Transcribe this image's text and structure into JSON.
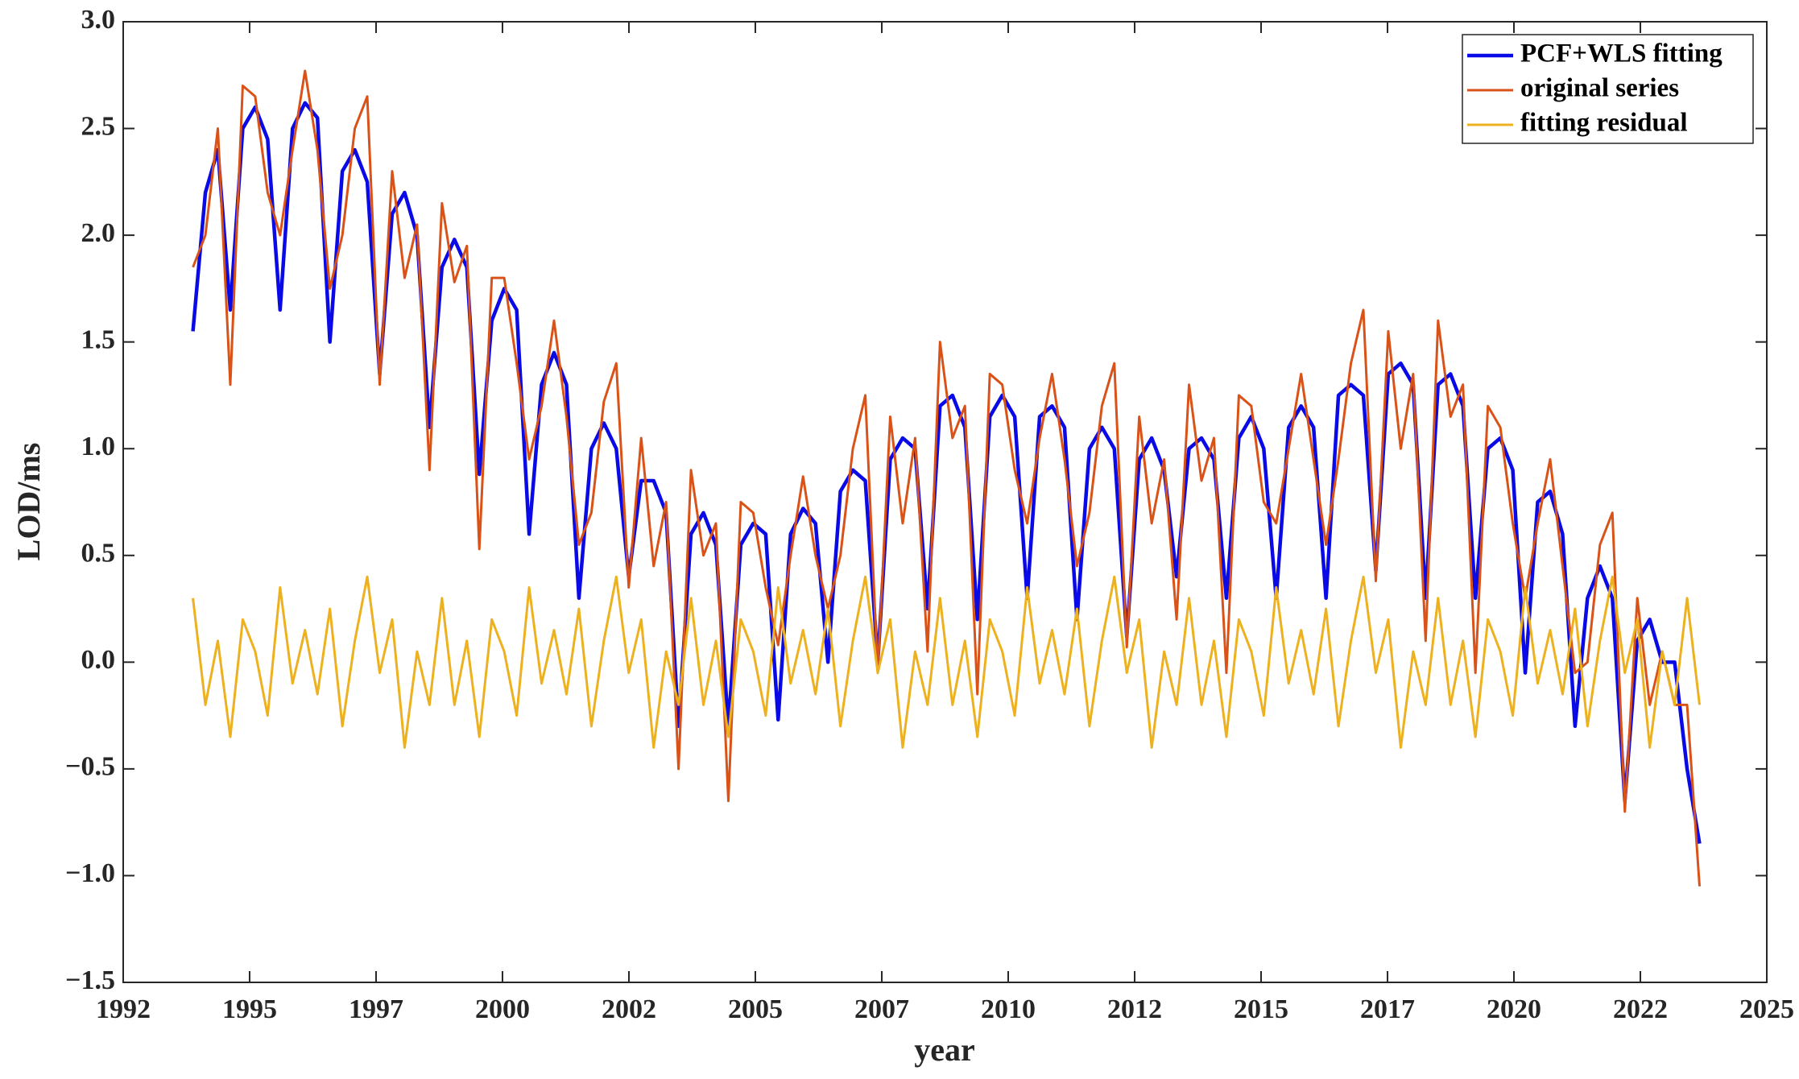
{
  "chart_data": {
    "type": "line",
    "xlabel": "year",
    "ylabel": "LOD/ms",
    "x": [
      1993.4,
      1993.65,
      1993.9,
      1994.15,
      1994.4,
      1994.65,
      1994.9,
      1995.15,
      1995.4,
      1995.65,
      1995.9,
      1996.15,
      1996.4,
      1996.65,
      1996.9,
      1997.15,
      1997.4,
      1997.65,
      1997.9,
      1998.15,
      1998.4,
      1998.65,
      1998.9,
      1999.15,
      1999.4,
      1999.65,
      1999.9,
      2000.15,
      2000.4,
      2000.65,
      2000.9,
      2001.15,
      2001.4,
      2001.65,
      2001.9,
      2002.15,
      2002.4,
      2002.65,
      2002.9,
      2003.15,
      2003.4,
      2003.65,
      2003.9,
      2004.15,
      2004.4,
      2004.65,
      2004.9,
      2005.15,
      2005.4,
      2005.65,
      2005.9,
      2006.15,
      2006.4,
      2006.65,
      2006.9,
      2007.15,
      2007.4,
      2007.65,
      2007.9,
      2008.15,
      2008.4,
      2008.65,
      2008.9,
      2009.15,
      2009.4,
      2009.65,
      2009.9,
      2010.15,
      2010.4,
      2010.65,
      2010.9,
      2011.15,
      2011.4,
      2011.65,
      2011.9,
      2012.15,
      2012.4,
      2012.65,
      2012.9,
      2013.15,
      2013.4,
      2013.65,
      2013.9,
      2014.15,
      2014.4,
      2014.65,
      2014.9,
      2015.15,
      2015.4,
      2015.65,
      2015.9,
      2016.15,
      2016.4,
      2016.65,
      2016.9,
      2017.15,
      2017.4,
      2017.65,
      2017.9,
      2018.15,
      2018.4,
      2018.65,
      2018.9,
      2019.15,
      2019.4,
      2019.65,
      2019.9,
      2020.15,
      2020.4,
      2020.65,
      2020.9,
      2021.15,
      2021.4,
      2021.65,
      2021.9,
      2022.15,
      2022.4,
      2022.65,
      2022.9,
      2023.15,
      2023.4,
      2023.65
    ],
    "series": [
      {
        "name": "PCF+WLS fitting",
        "color": "#0a0ae6",
        "values": [
          1.55,
          2.2,
          2.4,
          1.65,
          2.5,
          2.6,
          2.45,
          1.65,
          2.5,
          2.62,
          2.55,
          1.5,
          2.3,
          2.4,
          2.25,
          1.35,
          2.1,
          2.2,
          2.0,
          1.1,
          1.85,
          1.98,
          1.85,
          0.88,
          1.6,
          1.75,
          1.65,
          0.6,
          1.3,
          1.45,
          1.3,
          0.3,
          1.0,
          1.12,
          1.0,
          0.4,
          0.85,
          0.85,
          0.7,
          -0.3,
          0.6,
          0.7,
          0.55,
          -0.3,
          0.55,
          0.65,
          0.6,
          -0.27,
          0.6,
          0.72,
          0.65,
          0.0,
          0.8,
          0.9,
          0.85,
          0.0,
          0.95,
          1.05,
          1.0,
          0.25,
          1.2,
          1.25,
          1.1,
          0.2,
          1.15,
          1.25,
          1.15,
          0.3,
          1.15,
          1.2,
          1.1,
          0.2,
          1.0,
          1.1,
          1.0,
          0.12,
          0.95,
          1.05,
          0.9,
          0.4,
          1.0,
          1.05,
          0.95,
          0.3,
          1.05,
          1.15,
          1.0,
          0.3,
          1.1,
          1.2,
          1.1,
          0.3,
          1.25,
          1.3,
          1.25,
          0.43,
          1.35,
          1.4,
          1.3,
          0.3,
          1.3,
          1.35,
          1.2,
          0.3,
          1.0,
          1.05,
          0.9,
          -0.05,
          0.75,
          0.8,
          0.6,
          -0.3,
          0.3,
          0.45,
          0.3,
          -0.65,
          0.1,
          0.2,
          0.0,
          0.0,
          -0.5,
          -0.85
        ]
      },
      {
        "name": "original series",
        "color": "#d95319",
        "values": [
          1.85,
          2.0,
          2.5,
          1.3,
          2.7,
          2.65,
          2.2,
          2.0,
          2.4,
          2.77,
          2.4,
          1.75,
          2.0,
          2.5,
          2.65,
          1.3,
          2.3,
          1.8,
          2.05,
          0.9,
          2.15,
          1.78,
          1.95,
          0.53,
          1.8,
          1.8,
          1.4,
          0.95,
          1.2,
          1.6,
          1.15,
          0.55,
          0.7,
          1.22,
          1.4,
          0.35,
          1.05,
          0.45,
          0.75,
          -0.5,
          0.9,
          0.5,
          0.65,
          -0.65,
          0.75,
          0.7,
          0.35,
          0.08,
          0.5,
          0.87,
          0.5,
          0.25,
          0.5,
          1.0,
          1.25,
          -0.05,
          1.15,
          0.65,
          1.05,
          0.05,
          1.5,
          1.05,
          1.2,
          -0.15,
          1.35,
          1.3,
          0.9,
          0.65,
          1.05,
          1.35,
          0.95,
          0.45,
          0.7,
          1.2,
          1.4,
          0.07,
          1.15,
          0.65,
          0.95,
          0.2,
          1.3,
          0.85,
          1.05,
          -0.05,
          1.25,
          1.2,
          0.75,
          0.65,
          1.0,
          1.35,
          0.95,
          0.55,
          0.95,
          1.4,
          1.65,
          0.38,
          1.55,
          1.0,
          1.35,
          0.1,
          1.6,
          1.15,
          1.3,
          -0.05,
          1.2,
          1.1,
          0.65,
          0.3,
          0.65,
          0.95,
          0.45,
          -0.05,
          0.0,
          0.55,
          0.7,
          -0.7,
          0.3,
          -0.2,
          0.05,
          -0.2,
          -0.2,
          -1.05
        ]
      },
      {
        "name": "fitting residual",
        "color": "#edb120",
        "values": [
          0.3,
          -0.2,
          0.1,
          -0.35,
          0.2,
          0.05,
          -0.25,
          0.35,
          -0.1,
          0.15,
          -0.15,
          0.25,
          -0.3,
          0.1,
          0.4,
          -0.05,
          0.2,
          -0.4,
          0.05,
          -0.2,
          0.3,
          -0.2,
          0.1,
          -0.35,
          0.2,
          0.05,
          -0.25,
          0.35,
          -0.1,
          0.15,
          -0.15,
          0.25,
          -0.3,
          0.1,
          0.4,
          -0.05,
          0.2,
          -0.4,
          0.05,
          -0.2,
          0.3,
          -0.2,
          0.1,
          -0.35,
          0.2,
          0.05,
          -0.25,
          0.35,
          -0.1,
          0.15,
          -0.15,
          0.25,
          -0.3,
          0.1,
          0.4,
          -0.05,
          0.2,
          -0.4,
          0.05,
          -0.2,
          0.3,
          -0.2,
          0.1,
          -0.35,
          0.2,
          0.05,
          -0.25,
          0.35,
          -0.1,
          0.15,
          -0.15,
          0.25,
          -0.3,
          0.1,
          0.4,
          -0.05,
          0.2,
          -0.4,
          0.05,
          -0.2,
          0.3,
          -0.2,
          0.1,
          -0.35,
          0.2,
          0.05,
          -0.25,
          0.35,
          -0.1,
          0.15,
          -0.15,
          0.25,
          -0.3,
          0.1,
          0.4,
          -0.05,
          0.2,
          -0.4,
          0.05,
          -0.2,
          0.3,
          -0.2,
          0.1,
          -0.35,
          0.2,
          0.05,
          -0.25,
          0.35,
          -0.1,
          0.15,
          -0.15,
          0.25,
          -0.3,
          0.1,
          0.4,
          -0.05,
          0.2,
          -0.4,
          0.05,
          -0.2,
          0.3,
          -0.2
        ]
      }
    ],
    "xlim": [
      1992,
      2025
    ],
    "xticks": [
      {
        "value": 1992,
        "label": "1992"
      },
      {
        "value": 1994.538,
        "label": "1995"
      },
      {
        "value": 1997.077,
        "label": "1997"
      },
      {
        "value": 1999.615,
        "label": "2000"
      },
      {
        "value": 2002.154,
        "label": "2002"
      },
      {
        "value": 2004.692,
        "label": "2005"
      },
      {
        "value": 2007.231,
        "label": "2007"
      },
      {
        "value": 2009.769,
        "label": "2010"
      },
      {
        "value": 2012.308,
        "label": "2012"
      },
      {
        "value": 2014.846,
        "label": "2015"
      },
      {
        "value": 2017.385,
        "label": "2017"
      },
      {
        "value": 2019.923,
        "label": "2020"
      },
      {
        "value": 2022.462,
        "label": "2022"
      },
      {
        "value": 2025,
        "label": "2025"
      }
    ],
    "ylim": [
      -1.5,
      3.0
    ],
    "yticks": [
      {
        "value": -1.5,
        "label": "−1.5"
      },
      {
        "value": -1.0,
        "label": "−1.0"
      },
      {
        "value": -0.5,
        "label": "−0.5"
      },
      {
        "value": 0,
        "label": "0.0"
      },
      {
        "value": 0.5,
        "label": "0.5"
      },
      {
        "value": 1.0,
        "label": "1.0"
      },
      {
        "value": 1.5,
        "label": "1.5"
      },
      {
        "value": 2.0,
        "label": "2.0"
      },
      {
        "value": 2.5,
        "label": "2.5"
      },
      {
        "value": 3.0,
        "label": "3.0"
      }
    ],
    "grid": false,
    "legend": "top-right"
  }
}
